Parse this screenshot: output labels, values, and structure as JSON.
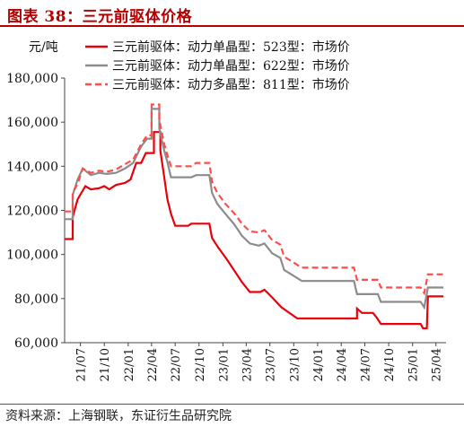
{
  "chart_data": {
    "type": "line",
    "title": "图表 38：三元前驱体价格",
    "ylabel": "元/吨",
    "ylim": [
      60000,
      180000
    ],
    "y_ticks": [
      "60,000",
      "80,000",
      "100,000",
      "120,000",
      "140,000",
      "160,000",
      "180,000"
    ],
    "x_ticks": [
      "21/07",
      "21/10",
      "22/01",
      "22/04",
      "22/07",
      "22/10",
      "23/01",
      "23/04",
      "23/07",
      "23/10",
      "24/01",
      "24/04",
      "24/07",
      "24/10",
      "25/01",
      "25/04"
    ],
    "legend_position": "top",
    "grid": false,
    "source": "资料来源：上海钢联，东证衍生品研究院",
    "series": [
      {
        "name": "三元前驱体：动力单晶型：523型：市场价",
        "color": "#e8000b",
        "dash": "solid",
        "points": [
          [
            "2021-05-01",
            107000
          ],
          [
            "2021-06-01",
            107000
          ],
          [
            "2021-06-01",
            117000
          ],
          [
            "2021-06-20",
            125000
          ],
          [
            "2021-07-20",
            131000
          ],
          [
            "2021-08-10",
            129500
          ],
          [
            "2021-09-10",
            130000
          ],
          [
            "2021-10-01",
            131000
          ],
          [
            "2021-10-20",
            129500
          ],
          [
            "2021-11-15",
            131500
          ],
          [
            "2021-12-20",
            132500
          ],
          [
            "2022-01-10",
            134000
          ],
          [
            "2022-02-01",
            141500
          ],
          [
            "2022-02-20",
            141500
          ],
          [
            "2022-03-10",
            146000
          ],
          [
            "2022-04-10",
            146000
          ],
          [
            "2022-04-10",
            155500
          ],
          [
            "2022-05-05",
            155500
          ],
          [
            "2022-05-05",
            147000
          ],
          [
            "2022-05-20",
            135000
          ],
          [
            "2022-06-01",
            125000
          ],
          [
            "2022-06-15",
            118500
          ],
          [
            "2022-07-01",
            113000
          ],
          [
            "2022-08-20",
            113000
          ],
          [
            "2022-09-01",
            114000
          ],
          [
            "2022-10-20",
            114000
          ],
          [
            "2022-11-10",
            114000
          ],
          [
            "2022-11-20",
            107500
          ],
          [
            "2022-12-15",
            103000
          ],
          [
            "2023-01-15",
            98000
          ],
          [
            "2023-02-15",
            92500
          ],
          [
            "2023-03-15",
            87500
          ],
          [
            "2023-04-15",
            83000
          ],
          [
            "2023-05-25",
            83000
          ],
          [
            "2023-06-10",
            84000
          ],
          [
            "2023-07-10",
            80500
          ],
          [
            "2023-08-15",
            76000
          ],
          [
            "2023-10-15",
            71000
          ],
          [
            "2024-06-01",
            71000
          ],
          [
            "2024-06-01",
            75500
          ],
          [
            "2024-06-20",
            73500
          ],
          [
            "2024-08-01",
            73500
          ],
          [
            "2024-08-15",
            71500
          ],
          [
            "2024-09-01",
            68500
          ],
          [
            "2025-02-01",
            68500
          ],
          [
            "2025-02-10",
            66500
          ],
          [
            "2025-02-25",
            66500
          ],
          [
            "2025-03-01",
            81000
          ],
          [
            "2025-04-30",
            81000
          ]
        ]
      },
      {
        "name": "三元前驱体：动力单晶型：622型：市场价",
        "color": "#8c8c8c",
        "dash": "solid",
        "points": [
          [
            "2021-05-01",
            116000
          ],
          [
            "2021-06-01",
            116000
          ],
          [
            "2021-06-01",
            127000
          ],
          [
            "2021-06-20",
            134000
          ],
          [
            "2021-07-10",
            139000
          ],
          [
            "2021-08-10",
            136000
          ],
          [
            "2021-09-10",
            137000
          ],
          [
            "2021-10-10",
            136500
          ],
          [
            "2021-11-15",
            137000
          ],
          [
            "2021-12-20",
            139000
          ],
          [
            "2022-01-20",
            141500
          ],
          [
            "2022-02-20",
            149000
          ],
          [
            "2022-03-15",
            152500
          ],
          [
            "2022-04-01",
            152500
          ],
          [
            "2022-04-01",
            166000
          ],
          [
            "2022-05-01",
            166000
          ],
          [
            "2022-05-01",
            157000
          ],
          [
            "2022-05-20",
            147000
          ],
          [
            "2022-06-01",
            142000
          ],
          [
            "2022-06-15",
            135000
          ],
          [
            "2022-09-01",
            135000
          ],
          [
            "2022-09-20",
            136000
          ],
          [
            "2022-11-10",
            136000
          ],
          [
            "2022-11-20",
            128000
          ],
          [
            "2022-12-10",
            123000
          ],
          [
            "2023-01-10",
            118500
          ],
          [
            "2023-02-15",
            113500
          ],
          [
            "2023-03-15",
            108500
          ],
          [
            "2023-04-15",
            105000
          ],
          [
            "2023-05-20",
            104000
          ],
          [
            "2023-06-10",
            105000
          ],
          [
            "2023-07-10",
            100500
          ],
          [
            "2023-08-10",
            98500
          ],
          [
            "2023-08-25",
            93000
          ],
          [
            "2023-11-01",
            88000
          ],
          [
            "2024-05-20",
            88000
          ],
          [
            "2024-06-01",
            82000
          ],
          [
            "2024-08-20",
            82000
          ],
          [
            "2024-09-01",
            78500
          ],
          [
            "2025-02-01",
            78500
          ],
          [
            "2025-02-15",
            76000
          ],
          [
            "2025-03-01",
            85000
          ],
          [
            "2025-04-30",
            85000
          ]
        ]
      },
      {
        "name": "三元前驱体：动力多晶型：811型：市场价",
        "color": "#ff4d4d",
        "dash": "dashed",
        "points": [
          [
            "2021-05-01",
            119500
          ],
          [
            "2021-06-01",
            119500
          ],
          [
            "2021-06-01",
            128000
          ],
          [
            "2021-06-20",
            132000
          ],
          [
            "2021-07-10",
            139000
          ],
          [
            "2021-08-10",
            137000
          ],
          [
            "2021-09-10",
            138000
          ],
          [
            "2021-10-10",
            137500
          ],
          [
            "2021-11-15",
            138500
          ],
          [
            "2021-12-20",
            141000
          ],
          [
            "2022-01-20",
            143000
          ],
          [
            "2022-02-20",
            150000
          ],
          [
            "2022-03-15",
            154000
          ],
          [
            "2022-04-01",
            154000
          ],
          [
            "2022-04-01",
            168000
          ],
          [
            "2022-05-01",
            168000
          ],
          [
            "2022-05-01",
            161000
          ],
          [
            "2022-05-20",
            150000
          ],
          [
            "2022-06-01",
            145000
          ],
          [
            "2022-06-15",
            140000
          ],
          [
            "2022-09-01",
            140000
          ],
          [
            "2022-09-20",
            141500
          ],
          [
            "2022-11-10",
            141500
          ],
          [
            "2022-11-20",
            133000
          ],
          [
            "2022-12-10",
            128000
          ],
          [
            "2023-01-10",
            123000
          ],
          [
            "2023-02-15",
            118500
          ],
          [
            "2023-03-15",
            114000
          ],
          [
            "2023-04-15",
            110500
          ],
          [
            "2023-05-20",
            110000
          ],
          [
            "2023-06-10",
            111000
          ],
          [
            "2023-07-10",
            106500
          ],
          [
            "2023-08-10",
            104500
          ],
          [
            "2023-08-25",
            99000
          ],
          [
            "2023-11-01",
            94000
          ],
          [
            "2024-05-20",
            94000
          ],
          [
            "2024-06-01",
            88500
          ],
          [
            "2024-08-20",
            88500
          ],
          [
            "2024-09-01",
            85000
          ],
          [
            "2025-02-01",
            85000
          ],
          [
            "2025-02-15",
            82500
          ],
          [
            "2025-03-01",
            91000
          ],
          [
            "2025-04-30",
            91000
          ]
        ]
      }
    ]
  }
}
